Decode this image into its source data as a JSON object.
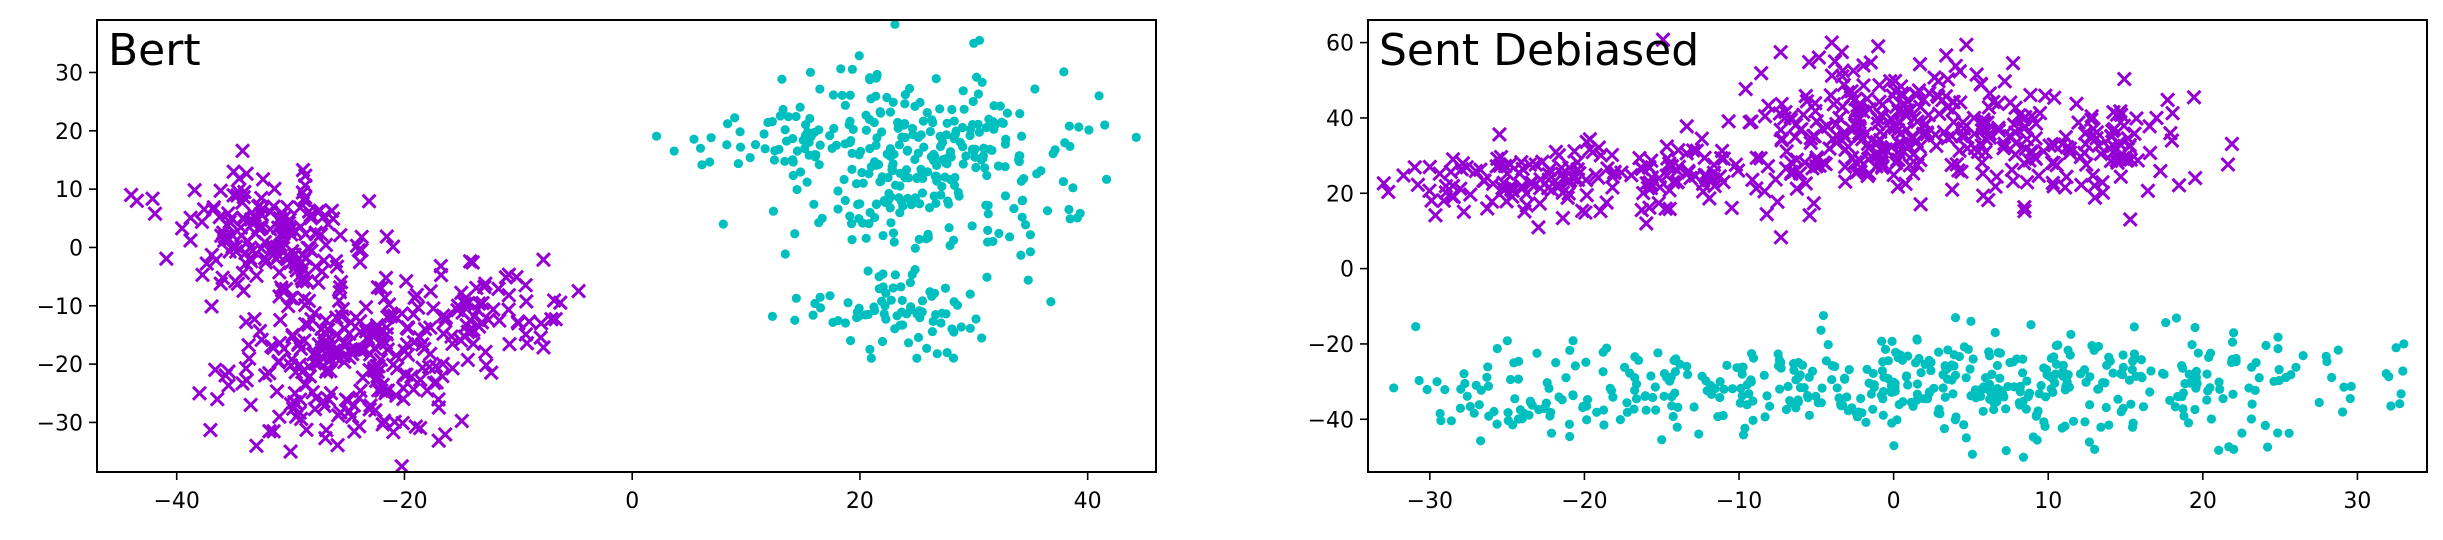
{
  "chart_data": [
    {
      "type": "scatter",
      "title": "Bert",
      "xlabel": "",
      "ylabel": "",
      "xlim": [
        -47,
        46
      ],
      "ylim": [
        -38.5,
        39
      ],
      "xticks": [
        -40,
        -20,
        0,
        20,
        40
      ],
      "yticks": [
        -30,
        -20,
        -10,
        0,
        10,
        20,
        30
      ],
      "grid": false,
      "legend": "none",
      "series": [
        {
          "marker": "x",
          "color": "#9400d3",
          "clusters": [
            {
              "center": [
                -32,
                3
              ],
              "spread": [
                4,
                4.5
              ],
              "count": 150
            },
            {
              "center": [
                -25,
                -18
              ],
              "spread": [
                5,
                8
              ],
              "count": 260
            },
            {
              "center": [
                -13,
                -11
              ],
              "spread": [
                3.5,
                4.5
              ],
              "count": 60
            }
          ],
          "points": [
            [
              -44,
              9
            ],
            [
              -43.5,
              8
            ],
            [
              -38,
              -25
            ],
            [
              -10,
              -13
            ],
            [
              -8,
              -13
            ],
            [
              -33,
              -34
            ],
            [
              -30,
              -35
            ],
            [
              -35,
              13
            ]
          ]
        },
        {
          "marker": "o",
          "color": "#00bfbf",
          "clusters": [
            {
              "center": [
                26,
                18
              ],
              "spread": [
                6.5,
                6
              ],
              "count": 220
            },
            {
              "center": [
                27,
                6
              ],
              "spread": [
                6,
                5
              ],
              "count": 80
            },
            {
              "center": [
                23,
                -11
              ],
              "spread": [
                4.5,
                3.5
              ],
              "count": 80
            },
            {
              "center": [
                12,
                18
              ],
              "spread": [
                4,
                3
              ],
              "count": 40
            }
          ],
          "points": [
            [
              30,
              35
            ],
            [
              30.5,
              35.5
            ],
            [
              41.5,
              21
            ],
            [
              41,
              26
            ],
            [
              6,
              17
            ],
            [
              8,
              4
            ],
            [
              25,
              -19
            ],
            [
              21,
              -19
            ]
          ]
        }
      ]
    },
    {
      "type": "scatter",
      "title": "Sent Debiased",
      "xlabel": "",
      "ylabel": "",
      "xlim": [
        -34,
        34.5
      ],
      "ylim": [
        -54,
        66
      ],
      "xticks": [
        -30,
        -20,
        -10,
        0,
        10,
        20,
        30
      ],
      "yticks": [
        -40,
        -20,
        0,
        20,
        40,
        60
      ],
      "grid": false,
      "legend": "none",
      "series": [
        {
          "marker": "x",
          "color": "#9400d3",
          "clusters": [
            {
              "center": [
                -1,
                37
              ],
              "spread": [
                5,
                9
              ],
              "count": 280
            },
            {
              "center": [
                -18,
                24
              ],
              "spread": [
                6,
                5
              ],
              "count": 150
            },
            {
              "center": [
                12,
                32
              ],
              "spread": [
                4.5,
                6
              ],
              "count": 110
            },
            {
              "center": [
                -27,
                22
              ],
              "spread": [
                2.5,
                4
              ],
              "count": 30
            }
          ],
          "points": [
            [
              -30,
              27
            ],
            [
              -28.5,
              29
            ],
            [
              17,
              40
            ],
            [
              18,
              34
            ],
            [
              -4,
              60
            ],
            [
              -1,
              59
            ],
            [
              -16,
              12
            ],
            [
              13,
              22
            ]
          ]
        },
        {
          "marker": "o",
          "color": "#00bfbf",
          "clusters": [
            {
              "center": [
                0,
                -32
              ],
              "spread": [
                14,
                7
              ],
              "count": 380
            },
            {
              "center": [
                13,
                -28
              ],
              "spread": [
                7,
                6
              ],
              "count": 100
            },
            {
              "center": [
                -22,
                -37
              ],
              "spread": [
                4,
                4
              ],
              "count": 40
            }
          ],
          "points": [
            [
              33,
              -20
            ],
            [
              32.5,
              -21
            ],
            [
              -28,
              -32
            ],
            [
              -27,
              -31
            ],
            [
              4,
              -13
            ],
            [
              5,
              -14
            ],
            [
              13,
              -48
            ],
            [
              22,
              -48
            ]
          ]
        }
      ]
    }
  ]
}
